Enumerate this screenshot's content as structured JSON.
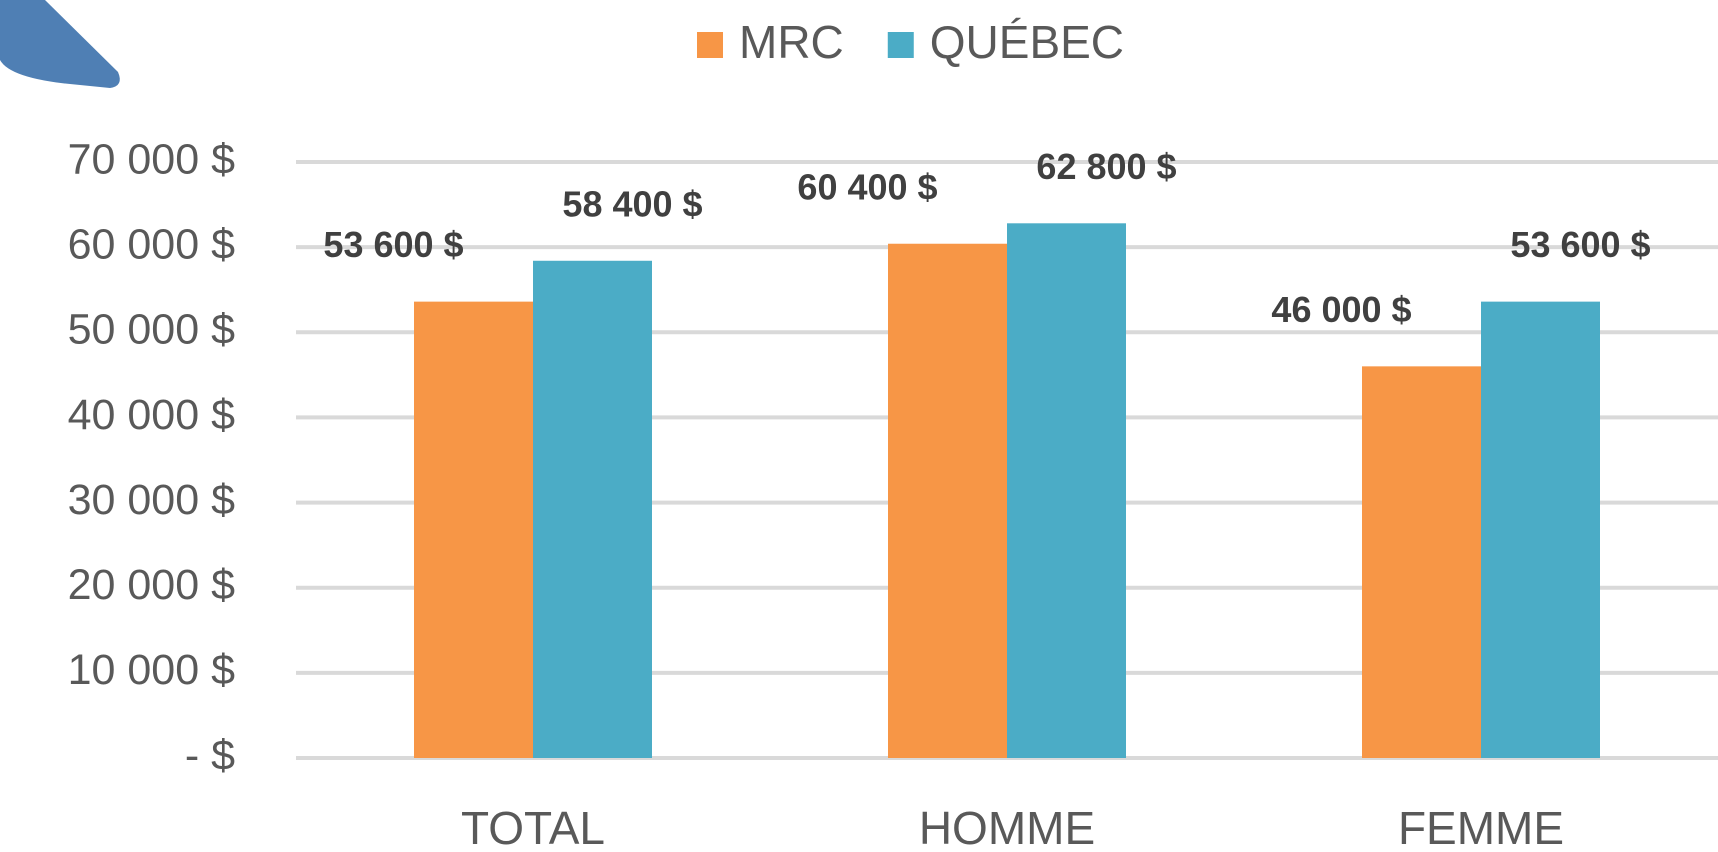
{
  "chart_data": {
    "type": "bar",
    "categories": [
      "TOTAL",
      "HOMME",
      "FEMME"
    ],
    "series": [
      {
        "name": "MRC",
        "color": "#f79646",
        "values": [
          53600,
          60400,
          46000
        ],
        "value_labels": [
          "53 600 $",
          "60 400 $",
          "46 000 $"
        ]
      },
      {
        "name": "QUÉBEC",
        "color": "#4bacc6",
        "values": [
          58400,
          62800,
          53600
        ],
        "value_labels": [
          "58 400 $",
          "62 800 $",
          "53 600 $"
        ]
      }
    ],
    "ylim": [
      0,
      70000
    ],
    "yticks": [
      {
        "value": 0,
        "label": "-   $"
      },
      {
        "value": 10000,
        "label": "10 000 $"
      },
      {
        "value": 20000,
        "label": "20 000 $"
      },
      {
        "value": 30000,
        "label": "30 000 $"
      },
      {
        "value": 40000,
        "label": "40 000 $"
      },
      {
        "value": 50000,
        "label": "50 000 $"
      },
      {
        "value": 60000,
        "label": "60 000 $"
      },
      {
        "value": 70000,
        "label": "70 000 $"
      }
    ],
    "grid": true
  }
}
